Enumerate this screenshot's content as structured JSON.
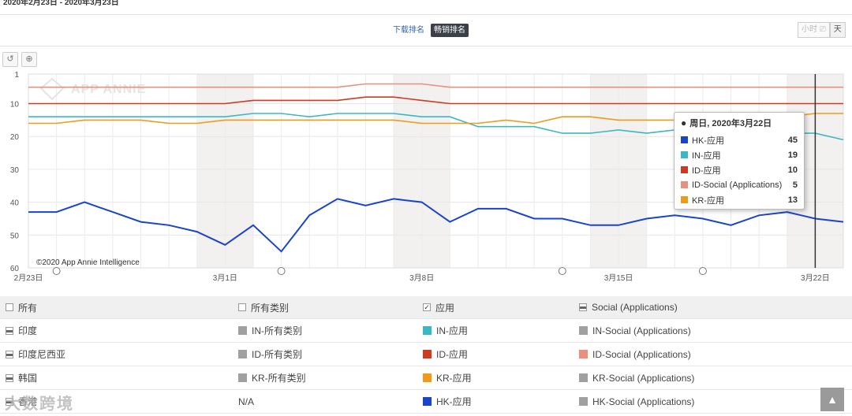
{
  "header": {
    "date_range": "2020年2月23日 - 2020年3月23日"
  },
  "toggle": {
    "download_label": "下载排名",
    "revenue_label": "畅销排名"
  },
  "granularity": {
    "hour": "小时",
    "day": "天"
  },
  "chart_data": {
    "type": "line",
    "x": [
      "2020-02-23",
      "2020-02-24",
      "2020-02-25",
      "2020-02-26",
      "2020-02-27",
      "2020-02-28",
      "2020-02-29",
      "2020-03-01",
      "2020-03-02",
      "2020-03-03",
      "2020-03-04",
      "2020-03-05",
      "2020-03-06",
      "2020-03-07",
      "2020-03-08",
      "2020-03-09",
      "2020-03-10",
      "2020-03-11",
      "2020-03-12",
      "2020-03-13",
      "2020-03-14",
      "2020-03-15",
      "2020-03-16",
      "2020-03-17",
      "2020-03-18",
      "2020-03-19",
      "2020-03-20",
      "2020-03-21",
      "2020-03-22",
      "2020-03-23"
    ],
    "xticks": [
      "2月23日",
      "3月1日",
      "3月8日",
      "3月15日",
      "3月22日"
    ],
    "yticks": [
      "1",
      "10",
      "20",
      "30",
      "40",
      "50",
      "60"
    ],
    "ylim": [
      1,
      60
    ],
    "y_reversed": true,
    "watermark": "APP ANNIE",
    "credit": "©2020 App Annie Intelligence",
    "series": [
      {
        "name": "HK-应用",
        "color": "#1a44cc",
        "values": [
          43,
          43,
          40,
          43,
          46,
          47,
          49,
          53,
          47,
          55,
          44,
          39,
          41,
          39,
          40,
          46,
          42,
          42,
          45,
          45,
          47,
          47,
          45,
          44,
          45,
          47,
          44,
          43,
          45,
          46
        ]
      },
      {
        "name": "IN-应用",
        "color": "#3bb8c3",
        "values": [
          14,
          14,
          14,
          14,
          14,
          14,
          14,
          14,
          13,
          13,
          14,
          13,
          13,
          13,
          14,
          14,
          17,
          17,
          17,
          19,
          19,
          18,
          19,
          18,
          18,
          18,
          18,
          19,
          19,
          21
        ]
      },
      {
        "name": "ID-应用",
        "color": "#cc3a22",
        "values": [
          10,
          10,
          10,
          10,
          10,
          10,
          10,
          10,
          9,
          9,
          9,
          9,
          8,
          8,
          9,
          10,
          10,
          10,
          10,
          10,
          10,
          10,
          10,
          10,
          10,
          10,
          10,
          10,
          10,
          10
        ]
      },
      {
        "name": "ID-Social (Applications)",
        "color": "#e89080",
        "values": [
          5,
          5,
          5,
          5,
          5,
          5,
          5,
          5,
          5,
          5,
          5,
          5,
          4,
          4,
          4,
          5,
          5,
          5,
          5,
          5,
          5,
          5,
          5,
          5,
          5,
          5,
          5,
          5,
          5,
          5
        ]
      },
      {
        "name": "KR-应用",
        "color": "#ee9a1a",
        "values": [
          16,
          16,
          15,
          15,
          15,
          16,
          16,
          15,
          15,
          15,
          15,
          15,
          15,
          15,
          16,
          16,
          16,
          15,
          16,
          14,
          14,
          15,
          15,
          15,
          15,
          15,
          15,
          14,
          13,
          13
        ]
      }
    ],
    "tooltip": {
      "title": "周日, 2020年3月22日",
      "rows": [
        {
          "name": "HK-应用",
          "color": "#1a44cc",
          "value": "45"
        },
        {
          "name": "IN-应用",
          "color": "#3bb8c3",
          "value": "19"
        },
        {
          "name": "ID-应用",
          "color": "#cc3a22",
          "value": "10"
        },
        {
          "name": "ID-Social (Applications)",
          "color": "#e89080",
          "value": "5"
        },
        {
          "name": "KR-应用",
          "color": "#ee9a1a",
          "value": "13"
        }
      ]
    }
  },
  "legend": {
    "header": {
      "all": "所有",
      "all_categories": "所有类别",
      "apps": "应用",
      "social": "Social (Applications)"
    },
    "rows": [
      {
        "country": "印度",
        "all_cat": "IN-所有类别",
        "all_cat_color": "#a0a0a0",
        "app": "IN-应用",
        "app_color": "#3bb8c3",
        "social": "IN-Social (Applications)",
        "social_color": "#a0a0a0"
      },
      {
        "country": "印度尼西亚",
        "all_cat": "ID-所有类别",
        "all_cat_color": "#a0a0a0",
        "app": "ID-应用",
        "app_color": "#cc3a22",
        "social": "ID-Social (Applications)",
        "social_color": "#e89080"
      },
      {
        "country": "韩国",
        "all_cat": "KR-所有类别",
        "all_cat_color": "#a0a0a0",
        "app": "KR-应用",
        "app_color": "#ee9a1a",
        "social": "KR-Social (Applications)",
        "social_color": "#a0a0a0"
      },
      {
        "country": "香港",
        "all_cat": "N/A",
        "app": "HK-应用",
        "app_color": "#1a44cc",
        "social": "HK-Social (Applications)",
        "social_color": "#a0a0a0"
      }
    ]
  },
  "watermark_text": "大数跨境",
  "totop_icon": "arrow-up-icon"
}
